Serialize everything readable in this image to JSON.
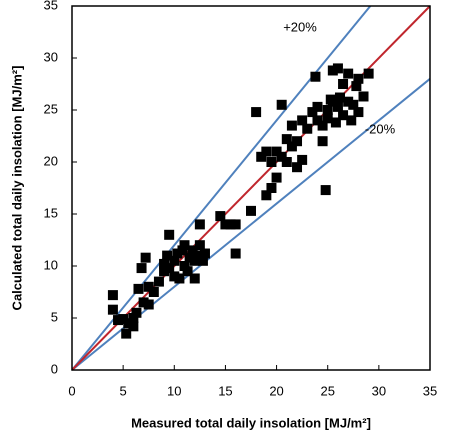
{
  "chart_data": {
    "type": "scatter",
    "x_label": "Measured total daily insolation [MJ/m²]",
    "y_label": "Calculated total daily insolation [MJ/m²]",
    "xlim": [
      0,
      35
    ],
    "ylim": [
      0,
      35
    ],
    "xticks": [
      0,
      5,
      10,
      15,
      20,
      25,
      30,
      35
    ],
    "yticks": [
      0,
      5,
      10,
      15,
      20,
      25,
      30,
      35
    ],
    "grid": false,
    "series": [
      {
        "color": "#000000",
        "x": [
          4,
          4,
          4.5,
          5,
          5.3,
          5.5,
          6,
          6,
          6.3,
          6.5,
          6.8,
          7,
          7.2,
          7.5,
          7.5,
          8,
          8.5,
          9,
          9,
          9.3,
          9.5,
          9.5,
          10,
          10,
          10.3,
          10.5,
          10.8,
          11,
          11,
          11.3,
          11.5,
          11.8,
          12,
          12,
          12.3,
          12.5,
          12.5,
          12.8,
          13,
          14.5,
          15,
          15.5,
          16,
          16,
          17.5,
          18,
          18.5,
          19,
          19,
          19.5,
          19.5,
          20,
          20,
          20.5,
          20.5,
          21,
          21,
          21.5,
          21.5,
          22,
          22,
          22.5,
          22.5,
          23,
          23.5,
          23.8,
          24,
          24,
          24.5,
          24.5,
          24.8,
          25,
          25,
          25.3,
          25.5,
          25.5,
          25.8,
          26,
          26,
          26.2,
          26.5,
          26.5,
          27,
          27,
          27.3,
          27.5,
          27.8,
          28,
          28,
          28.5,
          29
        ],
        "values": [
          7.2,
          5.8,
          4.8,
          4.9,
          3.5,
          4.5,
          4.2,
          5.0,
          5.5,
          7.8,
          9.8,
          6.5,
          10.8,
          8.0,
          6.3,
          7.5,
          8.5,
          9.5,
          10.2,
          11.0,
          13.0,
          9.8,
          10.5,
          9.0,
          11.2,
          8.8,
          11.5,
          10.0,
          12.0,
          9.5,
          10.8,
          11.5,
          8.8,
          10.5,
          11.0,
          12.0,
          14.0,
          10.5,
          11.2,
          14.8,
          14.0,
          14.0,
          11.2,
          14.0,
          15.3,
          24.8,
          20.5,
          16.8,
          21.0,
          17.5,
          20.0,
          21.0,
          18.5,
          25.5,
          20.5,
          22.2,
          20.0,
          21.5,
          23.5,
          22.0,
          19.5,
          24.0,
          20.2,
          23.2,
          24.8,
          28.2,
          25.3,
          24.0,
          22.0,
          23.5,
          17.3,
          25.0,
          24.2,
          26.0,
          28.8,
          25.8,
          23.8,
          29.0,
          25.3,
          26.2,
          27.5,
          24.5,
          28.5,
          25.8,
          24.0,
          25.5,
          27.3,
          28.0,
          24.8,
          26.3,
          28.5
        ]
      }
    ],
    "reference_lines": [
      {
        "slope": 1.2,
        "color": "#4f81bd",
        "label": "+20%"
      },
      {
        "slope": 0.8,
        "color": "#4f81bd",
        "label": "-20%"
      },
      {
        "slope": 1,
        "color": "#c0262d"
      }
    ]
  }
}
